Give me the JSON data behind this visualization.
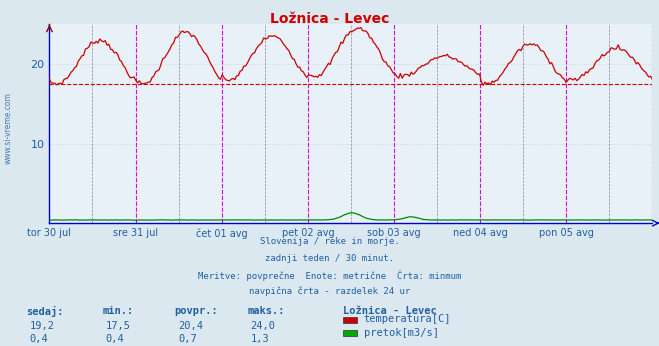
{
  "title": "Ložnica - Levec",
  "bg_color": "#dce8f0",
  "plot_bg_color": "#e8f0f8",
  "grid_color": "#c8d4e0",
  "text_color": "#2060a0",
  "title_color": "#cc0000",
  "avg_line_value": 17.5,
  "ylim": [
    0,
    25
  ],
  "yticks": [
    10,
    20
  ],
  "x_labels": [
    "tor 30 jul",
    "sre 31 jul",
    "čet 01 avg",
    "pet 02 avg",
    "sob 03 avg",
    "ned 04 avg",
    "pon 05 avg"
  ],
  "subtitle_lines": [
    "Slovenija / reke in morje.",
    "zadnji teden / 30 minut.",
    "Meritve: povprečne  Enote: metrične  Črta: minmum",
    "navpična črta - razdelek 24 ur"
  ],
  "table_headers": [
    "sedaj:",
    "min.:",
    "povpr.:",
    "maks.:"
  ],
  "table_row1": [
    "19,2",
    "17,5",
    "20,4",
    "24,0"
  ],
  "table_row2": [
    "0,4",
    "0,4",
    "0,7",
    "1,3"
  ],
  "legend_title": "Ložnica - Levec",
  "legend_items": [
    "temperatura[C]",
    "pretok[m3/s]"
  ],
  "legend_colors": [
    "#cc0000",
    "#00aa00"
  ],
  "temp_color": "#cc0000",
  "flow_color": "#008800",
  "avg_color": "#cc0000",
  "vline_day_color": "#dd00dd",
  "vline_mid_color": "#888888",
  "axis_color": "#0000cc",
  "watermark": "www.si-vreme.com",
  "side_label": "www.si-vreme.com"
}
